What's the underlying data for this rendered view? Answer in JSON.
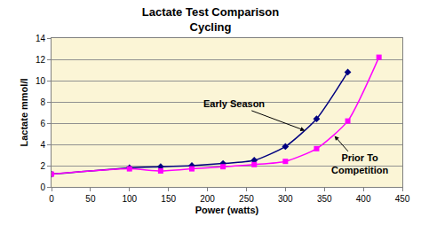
{
  "chart_data": {
    "type": "line",
    "title": "Lactate Test Comparison\nCycling",
    "x_label": "Power (watts)",
    "y_label": "Lactate mmol/l",
    "xlim": [
      0,
      450
    ],
    "xticks": [
      0,
      50,
      100,
      150,
      200,
      250,
      300,
      350,
      400,
      450
    ],
    "ylim": [
      0,
      14
    ],
    "yticks": [
      0,
      2,
      4,
      6,
      8,
      10,
      12,
      14
    ],
    "grid": true,
    "series": [
      {
        "name": "Early Season",
        "color": "#000080",
        "marker": "diamond",
        "x": [
          0,
          100,
          140,
          180,
          220,
          260,
          300,
          340,
          380
        ],
        "values": [
          1.2,
          1.8,
          1.9,
          2.0,
          2.2,
          2.5,
          3.8,
          6.4,
          10.8
        ]
      },
      {
        "name": "Prior To Competition",
        "color": "#ff00ff",
        "marker": "square",
        "x": [
          0,
          100,
          140,
          180,
          220,
          260,
          300,
          340,
          380,
          420
        ],
        "values": [
          1.2,
          1.7,
          1.5,
          1.7,
          1.9,
          2.1,
          2.4,
          3.6,
          6.2,
          12.2
        ]
      }
    ],
    "annotations": [
      {
        "text": "Early Season",
        "x": 325,
        "y": 5.3
      },
      {
        "text": "Prior To\nCompetition",
        "x": 363,
        "y": 4.8
      }
    ]
  }
}
